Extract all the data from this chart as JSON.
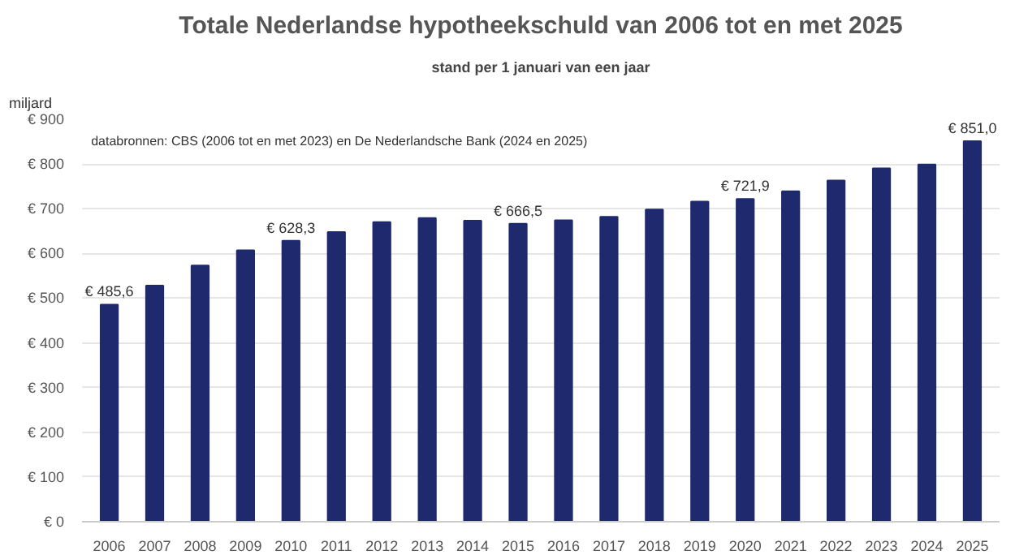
{
  "chart_data": {
    "type": "bar",
    "title": "Totale Nederlandse hypotheekschuld van 2006 tot en met 2025",
    "subtitle": "stand per 1 januari van een jaar",
    "ylabel": "miljard",
    "annotations": [
      "databronnen: CBS (2006 tot en met 2023) en De Nederlandsche Bank (2024 en 2025)"
    ],
    "categories": [
      "2006",
      "2007",
      "2008",
      "2009",
      "2010",
      "2011",
      "2012",
      "2013",
      "2014",
      "2015",
      "2016",
      "2017",
      "2018",
      "2019",
      "2020",
      "2021",
      "2022",
      "2023",
      "2024",
      "2025"
    ],
    "values": [
      485.6,
      528,
      573,
      607,
      628.3,
      648,
      670,
      679,
      673,
      666.5,
      674,
      682,
      698,
      716,
      721.9,
      739,
      763,
      790,
      799,
      851.0
    ],
    "value_labels": [
      "€ 485,6",
      null,
      null,
      null,
      "€ 628,3",
      null,
      null,
      null,
      null,
      "€ 666,5",
      null,
      null,
      null,
      null,
      "€ 721,9",
      null,
      null,
      null,
      null,
      "€ 851,0"
    ],
    "color": "#1f2a6e",
    "ylim": [
      0,
      900
    ],
    "yticks": [
      {
        "value": 0,
        "label": "€ 0"
      },
      {
        "value": 100,
        "label": "€ 100"
      },
      {
        "value": 200,
        "label": "€ 200"
      },
      {
        "value": 300,
        "label": "€ 300"
      },
      {
        "value": 400,
        "label": "€ 400"
      },
      {
        "value": 500,
        "label": "€ 500"
      },
      {
        "value": 600,
        "label": "€ 600"
      },
      {
        "value": 700,
        "label": "€ 700"
      },
      {
        "value": 800,
        "label": "€ 800"
      },
      {
        "value": 900,
        "label": "€ 900"
      }
    ],
    "grid": "y"
  }
}
